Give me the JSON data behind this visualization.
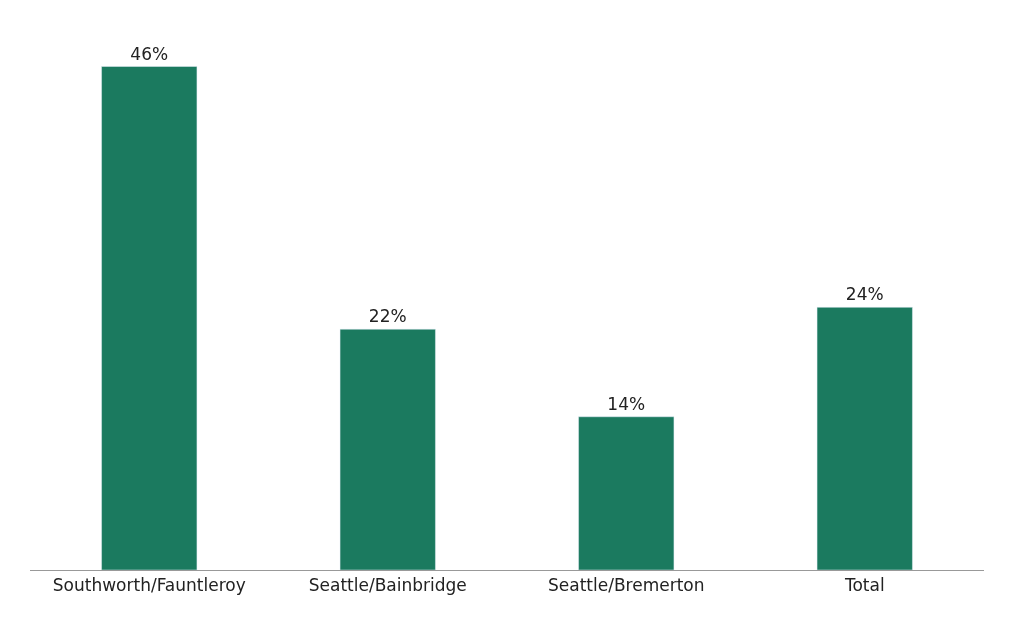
{
  "chart_data": {
    "type": "bar",
    "categories": [
      "Southworth/Fauntleroy",
      "Seattle/Bainbridge",
      "Seattle/Bremerton",
      "Total"
    ],
    "values": [
      46,
      22,
      14,
      24
    ],
    "value_labels": [
      "46%",
      "22%",
      "14%",
      "24%"
    ],
    "color": "#1b7a5f"
  }
}
